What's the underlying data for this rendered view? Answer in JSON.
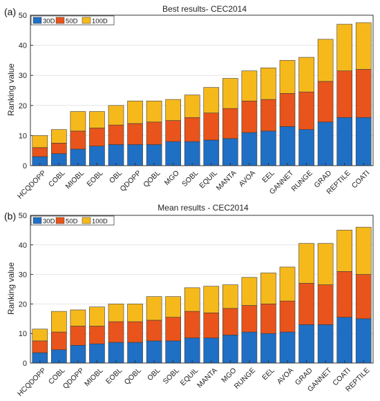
{
  "chart_data": [
    {
      "type": "bar",
      "stacked": true,
      "panel_label": "(a)",
      "title": "Best results- CEC2014",
      "ylabel": "Ranking value",
      "xlabel": "",
      "ylim": [
        0,
        50
      ],
      "yticks": [
        0,
        10,
        20,
        30,
        40,
        50
      ],
      "grid": true,
      "legend_position": "top-left",
      "categories": [
        "HCQDOPP",
        "COBL",
        "MIOBL",
        "EOBL",
        "OBL",
        "QDOPP",
        "QOBL",
        "MGO",
        "SOBL",
        "EQUIL",
        "MANTA",
        "AVOA",
        "EEL",
        "GANNET",
        "RUNGE",
        "GRAD",
        "REPTILE",
        "COATI"
      ],
      "series": [
        {
          "name": "30D",
          "color": "#1f6fc5",
          "values": [
            3,
            4,
            5.5,
            6.5,
            7,
            7,
            7,
            8,
            8,
            8.5,
            9,
            11,
            11.5,
            13,
            12,
            14.5,
            16,
            16
          ]
        },
        {
          "name": "50D",
          "color": "#e8541b",
          "values": [
            3,
            3.5,
            6,
            6,
            6.5,
            7,
            7.5,
            7,
            8,
            9,
            10,
            10.5,
            10.5,
            11,
            12.5,
            13.5,
            15.5,
            16
          ]
        },
        {
          "name": "100D",
          "color": "#f6b91c",
          "values": [
            4,
            4.5,
            6.5,
            5.5,
            6.5,
            7.5,
            7,
            7,
            7.5,
            8.5,
            10,
            10,
            10.5,
            11,
            11.5,
            14,
            15.5,
            15.5
          ]
        }
      ]
    },
    {
      "type": "bar",
      "stacked": true,
      "panel_label": "(b)",
      "title": "Mean results - CEC2014",
      "ylabel": "Ranking value",
      "xlabel": "",
      "ylim": [
        0,
        50
      ],
      "yticks": [
        0,
        10,
        20,
        30,
        40,
        50
      ],
      "grid": true,
      "legend_position": "top-left",
      "categories": [
        "HCQDOPP",
        "COBL",
        "QDOPP",
        "MIOBL",
        "EOBL",
        "QOBL",
        "OBL",
        "SOBL",
        "EQUIL",
        "MANTA",
        "MGO",
        "RUNGE",
        "EEL",
        "AVOA",
        "GRAD",
        "GANNET",
        "COATI",
        "REPTILE"
      ],
      "series": [
        {
          "name": "30D",
          "color": "#1f6fc5",
          "values": [
            3.5,
            4.5,
            6,
            6.5,
            7,
            7,
            7.5,
            7.5,
            8.5,
            8.5,
            9.5,
            10.5,
            10,
            10.5,
            13,
            13,
            15.5,
            15
          ]
        },
        {
          "name": "50D",
          "color": "#e8541b",
          "values": [
            4,
            6,
            6.5,
            6,
            7,
            7,
            7,
            8,
            9,
            8.5,
            9,
            9,
            10,
            10.5,
            14,
            13.5,
            15.5,
            15
          ]
        },
        {
          "name": "100D",
          "color": "#f6b91c",
          "values": [
            4,
            7,
            5.5,
            6.5,
            6,
            6,
            8,
            7,
            8,
            9,
            8,
            9.5,
            10.5,
            11.5,
            13.5,
            14,
            14,
            16
          ]
        }
      ]
    }
  ]
}
